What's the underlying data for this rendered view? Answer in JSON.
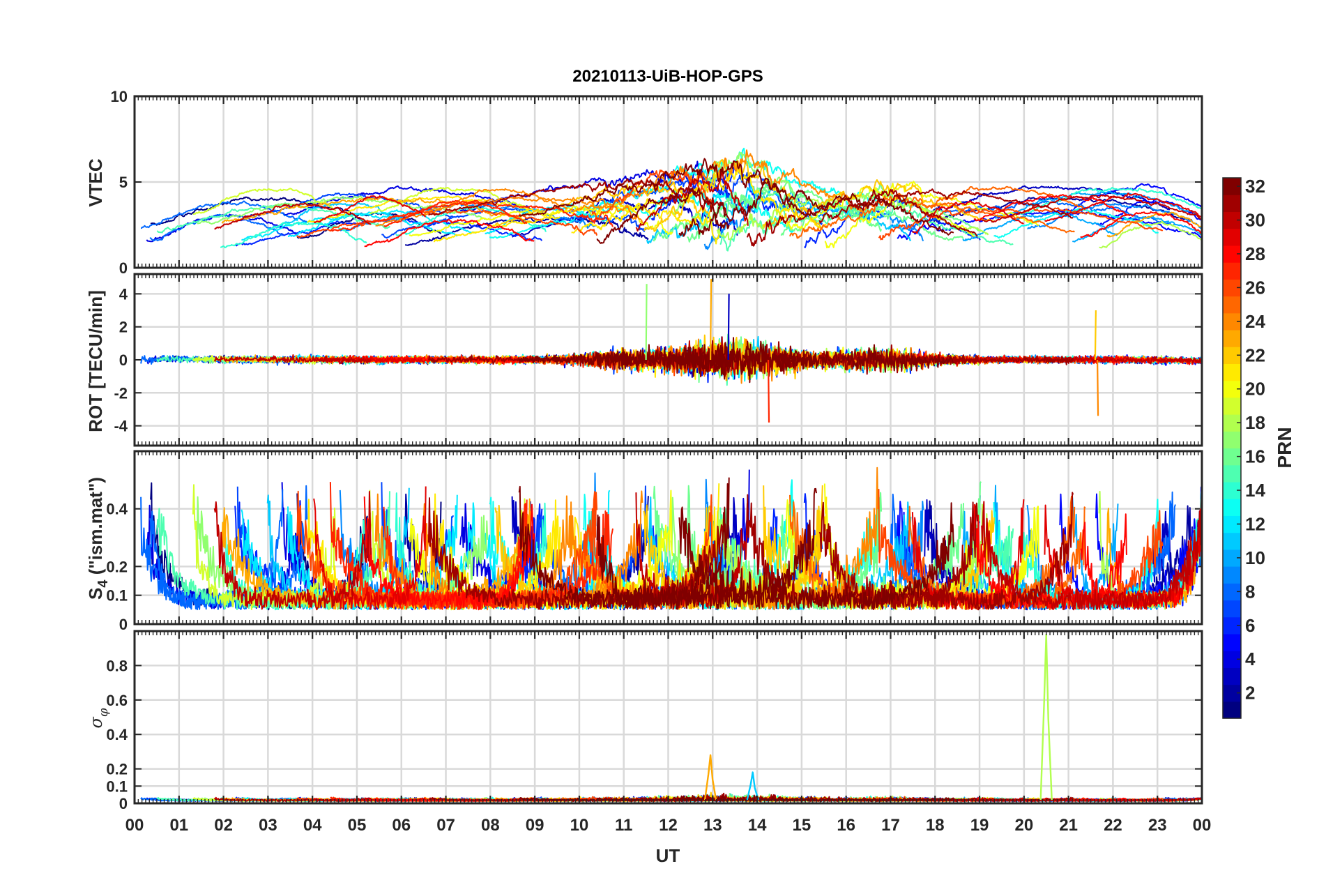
{
  "chart_data": {
    "type": "line",
    "title": "20210113-UiB-HOP-GPS",
    "xlabel": "UT",
    "x_tick_labels": [
      "00",
      "01",
      "02",
      "03",
      "04",
      "05",
      "06",
      "07",
      "08",
      "09",
      "10",
      "11",
      "12",
      "13",
      "14",
      "15",
      "16",
      "17",
      "18",
      "19",
      "20",
      "21",
      "22",
      "23",
      "00"
    ],
    "xlim_hours": [
      0,
      24
    ],
    "panels": [
      {
        "id": "vtec",
        "ylabel": "VTEC",
        "ylim": [
          0,
          10
        ],
        "yticks": [
          0,
          5,
          10
        ],
        "ytick_labels": [
          "0",
          "5",
          "10"
        ],
        "description_of_series": "32 PRN traces, values mostly 1-6 TECU, peak near 7 around 13-14 UT"
      },
      {
        "id": "rot",
        "ylabel": "ROT [TECU/min]",
        "ylim": [
          -5.2,
          5.2
        ],
        "yticks": [
          -4,
          -2,
          0,
          2,
          4
        ],
        "ytick_labels": [
          "-4",
          "-2",
          "0",
          "2",
          "4"
        ],
        "spikes": [
          {
            "t": 11.5,
            "value": 4.6
          },
          {
            "t": 12.95,
            "value": 4.9
          },
          {
            "t": 13.35,
            "value": 4.0
          },
          {
            "t": 14.25,
            "value": -3.8
          },
          {
            "t": 21.6,
            "value": 3.0
          },
          {
            "t": 21.65,
            "value": -3.4
          }
        ]
      },
      {
        "id": "s4",
        "ylabel_main": "S",
        "ylabel_sub": "4",
        "ylabel_rest": " (\"ism.mat\")",
        "ylim": [
          0,
          0.6
        ],
        "yticks": [
          0,
          0.1,
          0.2,
          0.4
        ],
        "ytick_labels": [
          "0",
          "0.1",
          "0.2",
          "0.4"
        ]
      },
      {
        "id": "sigma_phi",
        "ylabel_main": "σ",
        "ylabel_sub": "φ",
        "ylim": [
          0,
          1
        ],
        "yticks": [
          0,
          0.1,
          0.2,
          0.4,
          0.6,
          0.8
        ],
        "ytick_labels": [
          "0",
          "0.1",
          "0.2",
          "0.4",
          "0.6",
          "0.8"
        ],
        "spikes": [
          {
            "t": 20.5,
            "value": 0.98,
            "prn": 18
          },
          {
            "t": 12.95,
            "value": 0.28,
            "prn": 23
          },
          {
            "t": 13.9,
            "value": 0.18,
            "prn": 11
          }
        ]
      }
    ],
    "colorbar": {
      "label": "PRN",
      "range": [
        1,
        32
      ],
      "ticks": [
        2,
        4,
        6,
        8,
        10,
        12,
        14,
        16,
        18,
        20,
        22,
        24,
        26,
        28,
        30,
        32
      ],
      "tick_labels": [
        "2",
        "4",
        "6",
        "8",
        "10",
        "12",
        "14",
        "16",
        "18",
        "20",
        "22",
        "24",
        "26",
        "28",
        "30",
        "32"
      ],
      "colormap": "jet"
    },
    "prns": [
      1,
      2,
      3,
      4,
      5,
      6,
      7,
      8,
      9,
      10,
      11,
      12,
      13,
      14,
      15,
      16,
      17,
      18,
      19,
      20,
      21,
      22,
      23,
      24,
      25,
      26,
      27,
      28,
      29,
      30,
      31,
      32
    ]
  }
}
